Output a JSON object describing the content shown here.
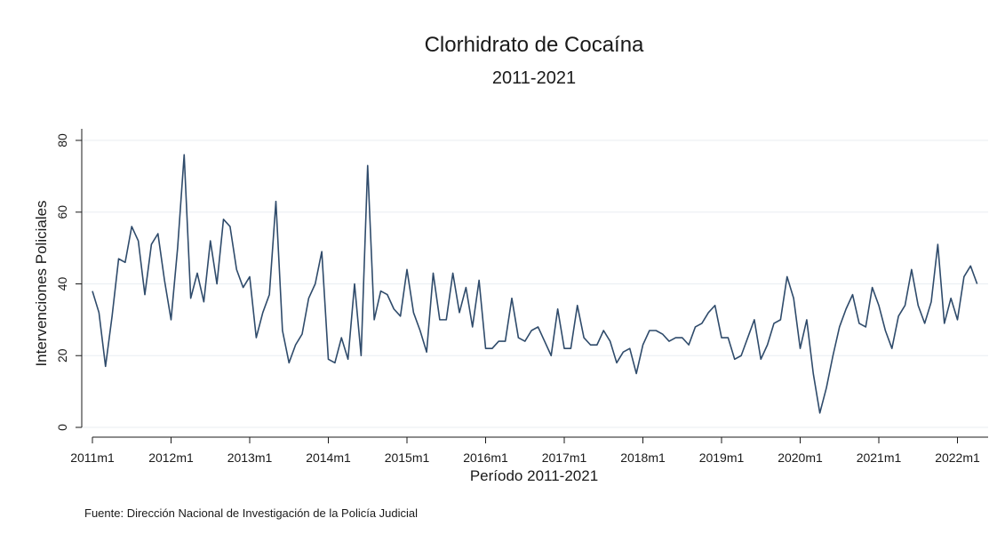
{
  "chart_data": {
    "type": "line",
    "title": "Clorhidrato de Cocaína",
    "subtitle": "2011-2021",
    "xlabel": "Período 2011-2021",
    "ylabel": "Intervenciones Policiales",
    "note": "Fuente: Dirección Nacional de Investigación de la Policía Judicial",
    "ylim": [
      0,
      80
    ],
    "yticks": [
      0,
      20,
      40,
      60,
      80
    ],
    "xticks": [
      "2011m1",
      "2012m1",
      "2013m1",
      "2014m1",
      "2015m1",
      "2016m1",
      "2017m1",
      "2018m1",
      "2019m1",
      "2020m1",
      "2021m1",
      "2022m1"
    ],
    "x_start": "2011m1",
    "x_end": "2022m4",
    "grid": true,
    "line_color": "#2f4b6b",
    "series": [
      {
        "values": [
          38,
          32,
          17,
          31,
          47,
          46,
          56,
          52,
          37,
          51,
          54,
          41,
          30,
          50,
          76,
          36,
          43,
          35,
          52,
          40,
          58,
          56,
          44,
          39,
          42,
          25,
          32,
          37,
          63,
          27,
          18,
          23,
          26,
          36,
          40,
          49,
          19,
          18,
          25,
          19,
          40,
          20,
          73,
          30,
          38,
          37,
          33,
          31,
          44,
          32,
          27,
          21,
          43,
          30,
          30,
          43,
          32,
          39,
          28,
          41,
          22,
          22,
          24,
          24,
          36,
          25,
          24,
          27,
          28,
          24,
          20,
          33,
          22,
          22,
          34,
          25,
          23,
          23,
          27,
          24,
          18,
          21,
          22,
          15,
          23,
          27,
          27,
          26,
          24,
          25,
          25,
          23,
          28,
          29,
          32,
          34,
          25,
          25,
          19,
          20,
          25,
          30,
          19,
          23,
          29,
          30,
          42,
          36,
          22,
          30,
          15,
          4,
          11,
          20,
          28,
          33,
          37,
          29,
          28,
          39,
          34,
          27,
          22,
          31,
          34,
          44,
          34,
          29,
          35,
          51,
          29,
          36,
          30,
          42,
          45,
          40
        ]
      }
    ]
  }
}
